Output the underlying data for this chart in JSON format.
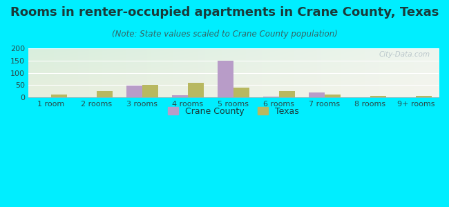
{
  "title": "Rooms in renter-occupied apartments in Crane County, Texas",
  "subtitle": "(Note: State values scaled to Crane County population)",
  "categories": [
    "1 room",
    "2 rooms",
    "3 rooms",
    "4 rooms",
    "5 rooms",
    "6 rooms",
    "7 rooms",
    "8 rooms",
    "9+ rooms"
  ],
  "crane_county": [
    0,
    0,
    48,
    10,
    150,
    2,
    20,
    0,
    0
  ],
  "texas": [
    13,
    25,
    50,
    60,
    40,
    25,
    11,
    7,
    6
  ],
  "crane_color": "#b89cc8",
  "texas_color": "#b8b860",
  "background_outer": "#00eeff",
  "ylim": [
    0,
    200
  ],
  "yticks": [
    0,
    50,
    100,
    150,
    200
  ],
  "bar_width": 0.35,
  "title_fontsize": 13,
  "subtitle_fontsize": 8.5,
  "legend_fontsize": 9,
  "tick_fontsize": 8,
  "title_color": "#1a3a3a",
  "subtitle_color": "#336666"
}
